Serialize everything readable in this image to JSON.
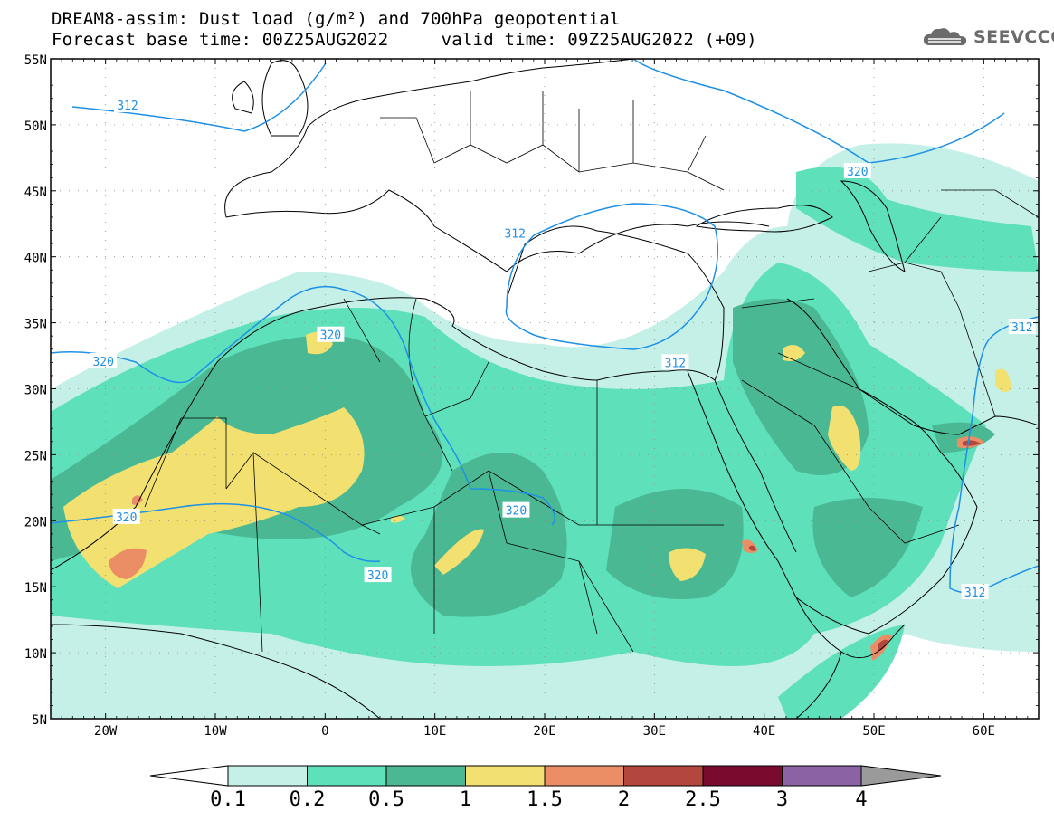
{
  "header": {
    "title_line1": "DREAM8-assim: Dust load (g/m²) and 700hPa geopotential",
    "title_line2": "Forecast base time: 00Z25AUG2022     valid time: 09Z25AUG2022 (+09)"
  },
  "logo": {
    "text": "SEEVCCC",
    "icon": "cloud-icon"
  },
  "map": {
    "lon_range": [
      -25,
      65
    ],
    "lat_range": [
      5,
      55
    ],
    "lat_ticks": [
      {
        "value": 55,
        "label": "55N"
      },
      {
        "value": 50,
        "label": "50N"
      },
      {
        "value": 45,
        "label": "45N"
      },
      {
        "value": 40,
        "label": "40N"
      },
      {
        "value": 35,
        "label": "35N"
      },
      {
        "value": 30,
        "label": "30N"
      },
      {
        "value": 25,
        "label": "25N"
      },
      {
        "value": 20,
        "label": "20N"
      },
      {
        "value": 15,
        "label": "15N"
      },
      {
        "value": 10,
        "label": "10N"
      },
      {
        "value": 5,
        "label": "5N"
      }
    ],
    "lon_ticks": [
      {
        "value": -20,
        "label": "20W"
      },
      {
        "value": -10,
        "label": "10W"
      },
      {
        "value": 0,
        "label": "0"
      },
      {
        "value": 10,
        "label": "10E"
      },
      {
        "value": 20,
        "label": "20E"
      },
      {
        "value": 30,
        "label": "30E"
      },
      {
        "value": 40,
        "label": "40E"
      },
      {
        "value": 50,
        "label": "50E"
      },
      {
        "value": 60,
        "label": "60E"
      }
    ],
    "contour_color": "#1e90e6",
    "contour_labels": [
      {
        "text": "312",
        "lon": -18,
        "lat": 51.5
      },
      {
        "text": "320",
        "lon": 48.5,
        "lat": 46.5
      },
      {
        "text": "312",
        "lon": 17.3,
        "lat": 41.8
      },
      {
        "text": "320",
        "lon": 0.5,
        "lat": 34.1
      },
      {
        "text": "312",
        "lon": 63.5,
        "lat": 34.7
      },
      {
        "text": "320",
        "lon": -20.2,
        "lat": 32.1
      },
      {
        "text": "312",
        "lon": 31.9,
        "lat": 32.0
      },
      {
        "text": "320",
        "lon": 17.4,
        "lat": 20.8
      },
      {
        "text": "320",
        "lon": -18.1,
        "lat": 20.3
      },
      {
        "text": "320",
        "lon": 4.8,
        "lat": 15.9
      },
      {
        "text": "312",
        "lon": 59.2,
        "lat": 14.6
      }
    ]
  },
  "legend": {
    "colors": [
      "#c4f0e8",
      "#5ee0bb",
      "#4ab892",
      "#f2e171",
      "#eb8e66",
      "#b3473d",
      "#7a0b2e",
      "#8b63a4",
      "#9a9a9a"
    ],
    "labels": [
      "0.1",
      "0.2",
      "0.5",
      "1",
      "1.5",
      "2",
      "2.5",
      "3",
      "4"
    ]
  }
}
